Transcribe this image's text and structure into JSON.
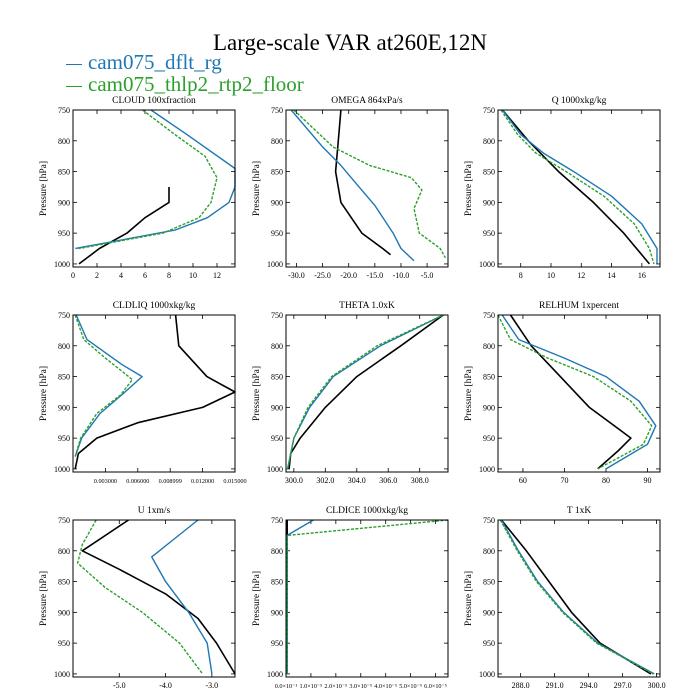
{
  "title": "Large-scale VAR at260E,12N",
  "legend": [
    {
      "name": "cam075_dflt_rg",
      "color": "#1f77b4"
    },
    {
      "name": "cam075_thlp2_rtp2_floor",
      "color": "#2ca02c"
    }
  ],
  "series_colors": [
    "#000000",
    "#1f77b4",
    "#2ca02c"
  ],
  "ylabel": "Pressure [hPa]",
  "pressure_levels": [
    750,
    800,
    850,
    900,
    950,
    1000
  ],
  "chart_data": [
    {
      "type": "line",
      "title": "CLOUD  100xfraction",
      "ylabel": "Pressure [hPa]",
      "xlim": [
        0,
        13.5
      ],
      "ylim": [
        1005,
        750
      ],
      "xticks": [
        0,
        2,
        4,
        6,
        8,
        10,
        12
      ],
      "xtick_labels": [
        "0",
        "2",
        "4",
        "6",
        "8",
        "10",
        "12"
      ],
      "series": [
        {
          "values": [
            [
              8.0,
              875
            ],
            [
              8.0,
              900
            ],
            [
              6.0,
              925
            ],
            [
              4.5,
              950
            ],
            [
              2.2,
              975
            ],
            [
              0.5,
              1000
            ]
          ],
          "style": "solid"
        },
        {
          "values": [
            [
              6.5,
              750
            ],
            [
              9.5,
              790
            ],
            [
              13.5,
              845
            ],
            [
              13.5,
              875
            ],
            [
              13.0,
              900
            ],
            [
              11.2,
              925
            ],
            [
              8.5,
              945
            ],
            [
              0.2,
              975
            ]
          ],
          "style": "solid"
        },
        {
          "values": [
            [
              5.8,
              750
            ],
            [
              8.5,
              790
            ],
            [
              11.0,
              825
            ],
            [
              12.0,
              860
            ],
            [
              11.5,
              900
            ],
            [
              10.5,
              925
            ],
            [
              7.5,
              950
            ],
            [
              0.5,
              975
            ]
          ],
          "style": "dash"
        }
      ]
    },
    {
      "type": "line",
      "title": "OMEGA  864xPa/s",
      "ylabel": "Pressure [hPa]",
      "xlim": [
        -32,
        -1
      ],
      "ylim": [
        1005,
        750
      ],
      "xticks": [
        -30,
        -25,
        -20,
        -15,
        -10,
        -5
      ],
      "xtick_labels": [
        "-30.0",
        "-25.0",
        "-20.0",
        "-15.0",
        "-10.0",
        "-5.0"
      ],
      "series": [
        {
          "values": [
            [
              -21.5,
              750
            ],
            [
              -22.0,
              800
            ],
            [
              -22.5,
              850
            ],
            [
              -21.5,
              900
            ],
            [
              -17.5,
              950
            ],
            [
              -13.5,
              975
            ],
            [
              -12.0,
              985
            ]
          ],
          "style": "solid"
        },
        {
          "values": [
            [
              -31.0,
              750
            ],
            [
              -28.0,
              780
            ],
            [
              -25.0,
              810
            ],
            [
              -21.5,
              840
            ],
            [
              -18.5,
              870
            ],
            [
              -15.0,
              905
            ],
            [
              -11.5,
              950
            ],
            [
              -10.0,
              975
            ],
            [
              -7.5,
              995
            ]
          ],
          "style": "solid"
        },
        {
          "values": [
            [
              -30.5,
              750
            ],
            [
              -23.0,
              810
            ],
            [
              -16.0,
              840
            ],
            [
              -8.0,
              860
            ],
            [
              -6.0,
              880
            ],
            [
              -7.5,
              910
            ],
            [
              -6.5,
              950
            ],
            [
              -2.5,
              975
            ],
            [
              -1.5,
              990
            ]
          ],
          "style": "dash"
        }
      ]
    },
    {
      "type": "line",
      "title": "Q  1000xkg/kg",
      "ylabel": "Pressure [hPa]",
      "xlim": [
        6.5,
        17.2
      ],
      "ylim": [
        1005,
        750
      ],
      "xticks": [
        8,
        10,
        12,
        14,
        16
      ],
      "xtick_labels": [
        "8",
        "10",
        "12",
        "14",
        "16"
      ],
      "series": [
        {
          "values": [
            [
              6.8,
              750
            ],
            [
              8.5,
              800
            ],
            [
              10.5,
              850
            ],
            [
              12.8,
              900
            ],
            [
              14.8,
              950
            ],
            [
              16.5,
              1000
            ]
          ],
          "style": "solid"
        },
        {
          "values": [
            [
              6.8,
              750
            ],
            [
              8.0,
              790
            ],
            [
              9.5,
              820
            ],
            [
              11.5,
              850
            ],
            [
              14.0,
              890
            ],
            [
              16.0,
              935
            ],
            [
              17.0,
              975
            ],
            [
              17.0,
              1000
            ]
          ],
          "style": "solid"
        },
        {
          "values": [
            [
              6.7,
              750
            ],
            [
              7.8,
              790
            ],
            [
              9.0,
              820
            ],
            [
              11.0,
              850
            ],
            [
              13.5,
              890
            ],
            [
              15.5,
              935
            ],
            [
              16.5,
              975
            ],
            [
              16.8,
              1000
            ]
          ],
          "style": "dash"
        }
      ]
    },
    {
      "type": "line",
      "title": "CLDLIQ  1000xkg/kg",
      "ylabel": "Pressure [hPa]",
      "xlim": [
        0,
        0.015
      ],
      "ylim": [
        1005,
        750
      ],
      "xticks": [
        0.003,
        0.006,
        0.009,
        0.012,
        0.015
      ],
      "xtick_labels": [
        "0.003000",
        "0.006000",
        "0.008999",
        "0.012000",
        "0.015000"
      ],
      "series": [
        {
          "values": [
            [
              0.0095,
              750
            ],
            [
              0.0098,
              800
            ],
            [
              0.0124,
              850
            ],
            [
              0.015,
              875
            ],
            [
              0.012,
              900
            ],
            [
              0.006,
              925
            ],
            [
              0.0022,
              950
            ],
            [
              0.0005,
              975
            ],
            [
              0.0002,
              1000
            ]
          ],
          "style": "solid"
        },
        {
          "values": [
            [
              0.0003,
              750
            ],
            [
              0.0013,
              790
            ],
            [
              0.0045,
              830
            ],
            [
              0.0064,
              850
            ],
            [
              0.0045,
              880
            ],
            [
              0.0025,
              910
            ],
            [
              0.0008,
              950
            ],
            [
              0.0002,
              980
            ]
          ],
          "style": "solid"
        },
        {
          "values": [
            [
              0.0002,
              750
            ],
            [
              0.001,
              790
            ],
            [
              0.003,
              820
            ],
            [
              0.0055,
              855
            ],
            [
              0.0044,
              880
            ],
            [
              0.0022,
              910
            ],
            [
              0.0007,
              950
            ],
            [
              0.0002,
              980
            ]
          ],
          "style": "dash"
        }
      ]
    },
    {
      "type": "line",
      "title": "THETA  1.0xK",
      "ylabel": "Pressure [hPa]",
      "xlim": [
        299.5,
        309.8
      ],
      "ylim": [
        1005,
        750
      ],
      "xticks": [
        300,
        302,
        304,
        306,
        308
      ],
      "xtick_labels": [
        "300.0",
        "302.0",
        "304.0",
        "306.0",
        "308.0"
      ],
      "series": [
        {
          "values": [
            [
              309.5,
              750
            ],
            [
              306.8,
              800
            ],
            [
              304.0,
              850
            ],
            [
              302.0,
              900
            ],
            [
              300.4,
              950
            ],
            [
              299.8,
              975
            ],
            [
              299.7,
              1000
            ]
          ],
          "style": "solid"
        },
        {
          "values": [
            [
              309.5,
              750
            ],
            [
              305.5,
              800
            ],
            [
              302.5,
              850
            ],
            [
              301.0,
              900
            ],
            [
              300.0,
              950
            ],
            [
              299.6,
              1000
            ]
          ],
          "style": "solid"
        },
        {
          "values": [
            [
              309.5,
              750
            ],
            [
              305.3,
              800
            ],
            [
              302.4,
              850
            ],
            [
              300.9,
              900
            ],
            [
              300.0,
              950
            ],
            [
              299.6,
              1000
            ]
          ],
          "style": "dash"
        }
      ]
    },
    {
      "type": "line",
      "title": "RELHUM  1xpercent",
      "ylabel": "Pressure [hPa]",
      "xlim": [
        54,
        93
      ],
      "ylim": [
        1005,
        750
      ],
      "xticks": [
        60,
        70,
        80,
        90
      ],
      "xtick_labels": [
        "60",
        "70",
        "80",
        "90"
      ],
      "series": [
        {
          "values": [
            [
              57.0,
              750
            ],
            [
              62.0,
              800
            ],
            [
              69.0,
              850
            ],
            [
              76.0,
              900
            ],
            [
              83.0,
              935
            ],
            [
              86.0,
              950
            ],
            [
              83.0,
              970
            ],
            [
              78.0,
              1000
            ]
          ],
          "style": "solid"
        },
        {
          "values": [
            [
              55.0,
              750
            ],
            [
              59.0,
              790
            ],
            [
              70.0,
              820
            ],
            [
              80.0,
              850
            ],
            [
              88.0,
              890
            ],
            [
              92.0,
              930
            ],
            [
              90.0,
              960
            ],
            [
              80.0,
              1000
            ]
          ],
          "style": "solid"
        },
        {
          "values": [
            [
              54.0,
              750
            ],
            [
              57.0,
              790
            ],
            [
              66.0,
              820
            ],
            [
              77.0,
              850
            ],
            [
              86.0,
              890
            ],
            [
              91.0,
              930
            ],
            [
              89.0,
              960
            ],
            [
              78.0,
              1000
            ]
          ],
          "style": "dash"
        }
      ]
    },
    {
      "type": "line",
      "title": "U  1xm/s",
      "ylabel": "Pressure [hPa]",
      "xlim": [
        -6.0,
        -2.5
      ],
      "ylim": [
        1005,
        750
      ],
      "xticks": [
        -5,
        -4,
        -3
      ],
      "xtick_labels": [
        "-5.0",
        "-4.0",
        "-3.0"
      ],
      "series": [
        {
          "values": [
            [
              -4.8,
              750
            ],
            [
              -5.8,
              800
            ],
            [
              -5.0,
              830
            ],
            [
              -4.0,
              870
            ],
            [
              -3.3,
              910
            ],
            [
              -2.9,
              950
            ],
            [
              -2.5,
              1000
            ]
          ],
          "style": "solid"
        },
        {
          "values": [
            [
              -3.3,
              750
            ],
            [
              -3.8,
              780
            ],
            [
              -4.3,
              810
            ],
            [
              -4.0,
              850
            ],
            [
              -3.5,
              900
            ],
            [
              -3.1,
              950
            ],
            [
              -3.0,
              1000
            ]
          ],
          "style": "solid"
        },
        {
          "values": [
            [
              -5.5,
              750
            ],
            [
              -5.8,
              790
            ],
            [
              -5.9,
              820
            ],
            [
              -5.3,
              860
            ],
            [
              -4.5,
              900
            ],
            [
              -3.7,
              950
            ],
            [
              -3.2,
              1000
            ]
          ],
          "style": "dash"
        }
      ]
    },
    {
      "type": "line",
      "title": "CLDICE  1000xkg/kg",
      "ylabel": "Pressure [hPa]",
      "xlim": [
        0,
        6.5e-05
      ],
      "ylim": [
        1005,
        750
      ],
      "xticks": [
        0,
        1e-05,
        2e-05,
        3e-05,
        4e-05,
        5e-05,
        6e-05
      ],
      "xtick_labels": [
        "0.0×10⁻¹",
        "1.0×10⁻⁵",
        "2.0×10⁻⁵",
        "3.0×10⁻⁵",
        "4.0×10⁻⁵",
        "5.0×10⁻⁵",
        "6.0×10⁻⁵"
      ],
      "series": [
        {
          "values": [
            [
              5e-07,
              750
            ],
            [
              5e-07,
              1000
            ]
          ],
          "style": "solid"
        },
        {
          "values": [
            [
              1.1e-05,
              750
            ],
            [
              5e-07,
              775
            ],
            [
              5e-07,
              1000
            ]
          ],
          "style": "solid"
        },
        {
          "values": [
            [
              6.5e-05,
              750
            ],
            [
              5e-07,
              775
            ],
            [
              5e-07,
              1000
            ]
          ],
          "style": "dash"
        }
      ]
    },
    {
      "type": "line",
      "title": "T  1xK",
      "ylabel": "Pressure [hPa]",
      "xlim": [
        286.0,
        300.3
      ],
      "ylim": [
        1005,
        750
      ],
      "xticks": [
        288,
        291,
        294,
        297,
        300
      ],
      "xtick_labels": [
        "288.0",
        "291.0",
        "294.0",
        "297.0",
        "300.0"
      ],
      "series": [
        {
          "values": [
            [
              286.3,
              750
            ],
            [
              288.5,
              800
            ],
            [
              290.5,
              850
            ],
            [
              292.5,
              900
            ],
            [
              295.0,
              950
            ],
            [
              299.5,
              1000
            ]
          ],
          "style": "solid"
        },
        {
          "values": [
            [
              286.3,
              750
            ],
            [
              287.8,
              800
            ],
            [
              289.5,
              850
            ],
            [
              291.8,
              900
            ],
            [
              294.8,
              950
            ],
            [
              299.8,
              1000
            ]
          ],
          "style": "solid"
        },
        {
          "values": [
            [
              286.2,
              750
            ],
            [
              287.7,
              800
            ],
            [
              289.4,
              850
            ],
            [
              291.7,
              900
            ],
            [
              294.7,
              950
            ],
            [
              299.7,
              1000
            ]
          ],
          "style": "dash"
        }
      ]
    }
  ]
}
